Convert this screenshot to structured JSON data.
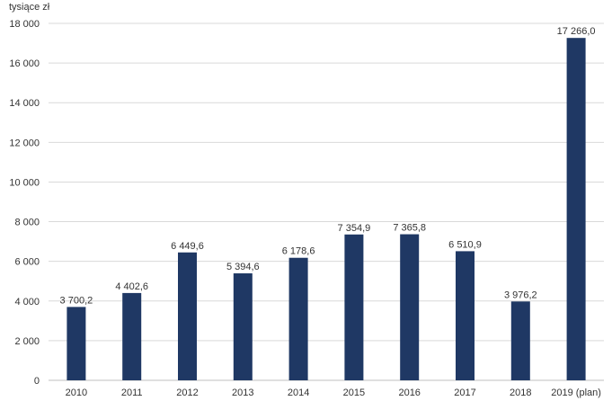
{
  "chart_data": {
    "type": "bar",
    "unit_label": "tysiące zł",
    "categories": [
      "2010",
      "2011",
      "2012",
      "2013",
      "2014",
      "2015",
      "2016",
      "2017",
      "2018",
      "2019 (plan)"
    ],
    "values": [
      3700.2,
      4402.6,
      6449.6,
      5394.6,
      6178.6,
      7354.9,
      7365.8,
      6510.9,
      3976.2,
      17266.0
    ],
    "value_labels": [
      "3 700,2",
      "4 402,6",
      "6 449,6",
      "5 394,6",
      "6 178,6",
      "7 354,9",
      "7 365,8",
      "6 510,9",
      "3 976,2",
      "17 266,0"
    ],
    "yticks": [
      0,
      2000,
      4000,
      6000,
      8000,
      10000,
      12000,
      14000,
      16000,
      18000
    ],
    "ytick_labels": [
      "0",
      "2 000",
      "4 000",
      "6 000",
      "8 000",
      "10 000",
      "12 000",
      "14 000",
      "16 000",
      "18 000"
    ],
    "ylim": [
      0,
      18000
    ],
    "grid": true,
    "legend": false,
    "bar_color": "#1f3864",
    "grid_color": "#d9d9d9"
  }
}
